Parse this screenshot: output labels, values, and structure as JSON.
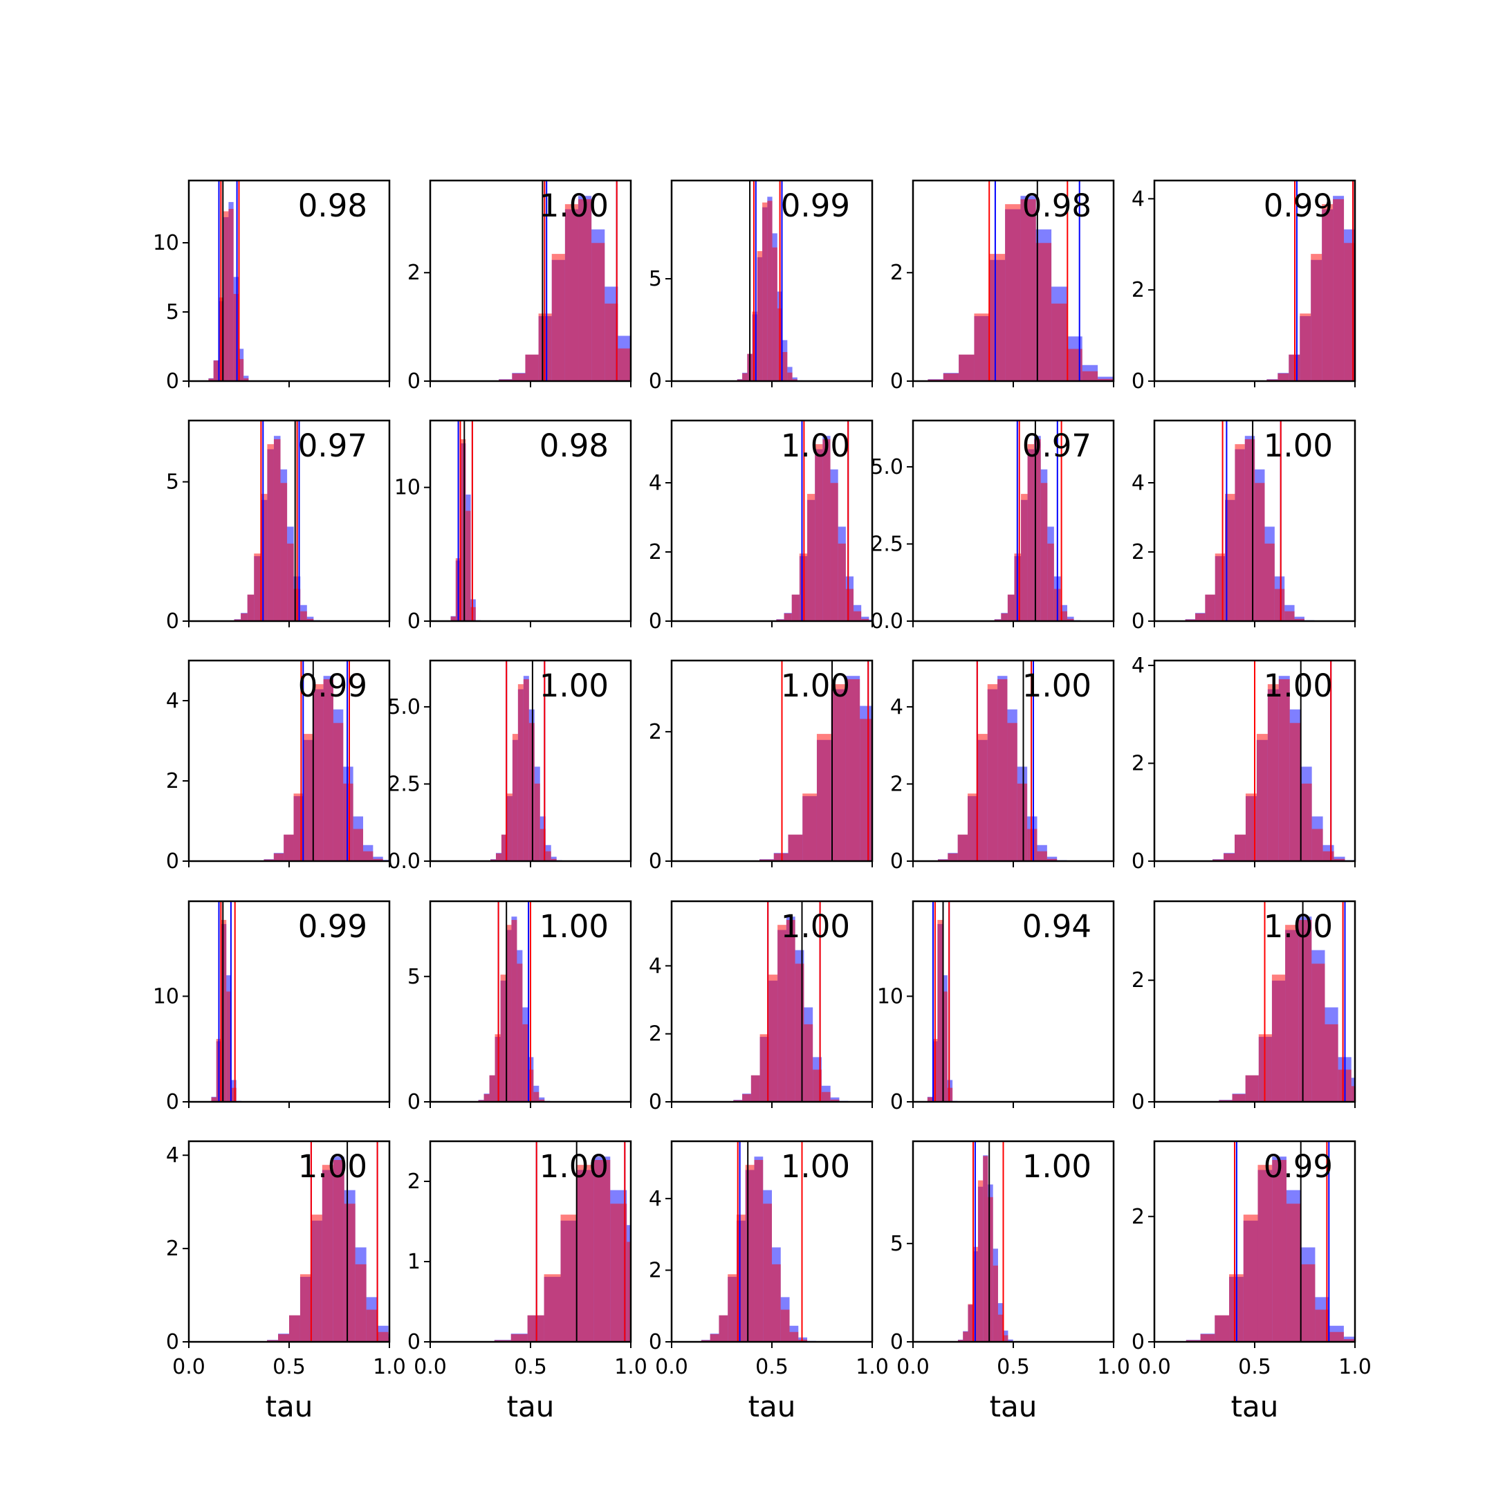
{
  "colors": {
    "blue": "#0000ff",
    "red": "#ff0000",
    "overlap": "#c0396f",
    "line_black": "#000000"
  },
  "chart_data": {
    "type": "histogram-grid",
    "rows": 5,
    "cols": 5,
    "xlabel": "tau",
    "xlim": [
      0.0,
      1.0
    ],
    "x_tick_labels": [
      "0.0",
      "0.5",
      "1.0"
    ],
    "hist_overlay": "blue and red semi-transparent histograms per panel with vertical lines",
    "panels": [
      {
        "score": "0.98",
        "mean": 0.2,
        "sd": 0.03,
        "ymax": 14.5,
        "yticks": [
          "0",
          "5",
          "10"
        ],
        "yvals": [
          0,
          5,
          10
        ],
        "lines": {
          "blue": [
            0.15,
            0.24
          ],
          "red": [
            0.16,
            0.25
          ],
          "black": [
            0.17
          ]
        }
      },
      {
        "score": "1.00",
        "mean": 0.75,
        "sd": 0.12,
        "ymax": 3.7,
        "yticks": [
          "0",
          "2"
        ],
        "yvals": [
          0,
          2
        ],
        "lines": {
          "blue": [
            0.58,
            0.93
          ],
          "red": [
            0.57,
            0.93
          ],
          "black": [
            0.56
          ]
        }
      },
      {
        "score": "0.99",
        "mean": 0.48,
        "sd": 0.045,
        "ymax": 9.8,
        "yticks": [
          "0",
          "5"
        ],
        "yvals": [
          0,
          5
        ],
        "lines": {
          "blue": [
            0.42,
            0.55
          ],
          "red": [
            0.41,
            0.54
          ],
          "black": [
            0.39
          ]
        }
      },
      {
        "score": "0.98",
        "mean": 0.55,
        "sd": 0.14,
        "ymax": 3.7,
        "yticks": [
          "0",
          "2"
        ],
        "yvals": [
          0,
          2
        ],
        "lines": {
          "blue": [
            0.41,
            0.83
          ],
          "red": [
            0.38,
            0.77
          ],
          "black": [
            0.62
          ]
        }
      },
      {
        "score": "0.99",
        "mean": 0.9,
        "sd": 0.1,
        "ymax": 4.4,
        "yticks": [
          "0",
          "2",
          "4"
        ],
        "yvals": [
          0,
          2,
          4
        ],
        "lines": {
          "blue": [
            0.71,
            0.99
          ],
          "red": [
            0.7,
            0.99
          ],
          "black": [
            0.99
          ]
        }
      },
      {
        "score": "0.97",
        "mean": 0.43,
        "sd": 0.06,
        "ymax": 7.2,
        "yticks": [
          "0",
          "5"
        ],
        "yvals": [
          0,
          5
        ],
        "lines": {
          "blue": [
            0.37,
            0.55
          ],
          "red": [
            0.36,
            0.54
          ],
          "black": [
            0.53
          ]
        }
      },
      {
        "score": "0.98",
        "mean": 0.17,
        "sd": 0.02,
        "ymax": 15.0,
        "yticks": [
          "0",
          "10"
        ],
        "yvals": [
          0,
          10
        ],
        "lines": {
          "blue": [
            0.14,
            0.21
          ],
          "red": [
            0.15,
            0.21
          ],
          "black": [
            0.17
          ]
        }
      },
      {
        "score": "1.00",
        "mean": 0.76,
        "sd": 0.07,
        "ymax": 5.8,
        "yticks": [
          "0",
          "2",
          "4"
        ],
        "yvals": [
          0,
          2,
          4
        ],
        "lines": {
          "blue": [
            0.65,
            0.88
          ],
          "red": [
            0.66,
            0.88
          ],
          "black": [
            0.65
          ]
        }
      },
      {
        "score": "0.97",
        "mean": 0.61,
        "sd": 0.06,
        "ymax": 6.5,
        "yticks": [
          "0.0",
          "2.5",
          "5.0"
        ],
        "yvals": [
          0,
          2.5,
          5
        ],
        "lines": {
          "blue": [
            0.52,
            0.72
          ],
          "red": [
            0.53,
            0.74
          ],
          "black": [
            0.61
          ]
        }
      },
      {
        "score": "1.00",
        "mean": 0.46,
        "sd": 0.09,
        "ymax": 5.8,
        "yticks": [
          "0",
          "2",
          "4"
        ],
        "yvals": [
          0,
          2,
          4
        ],
        "lines": {
          "blue": [
            0.36,
            0.63
          ],
          "red": [
            0.34,
            0.63
          ],
          "black": [
            0.49
          ]
        }
      },
      {
        "score": "0.99",
        "mean": 0.68,
        "sd": 0.09,
        "ymax": 5.0,
        "yticks": [
          "0",
          "2",
          "4"
        ],
        "yvals": [
          0,
          2,
          4
        ],
        "lines": {
          "blue": [
            0.57,
            0.79
          ],
          "red": [
            0.56,
            0.8
          ],
          "black": [
            0.62
          ]
        }
      },
      {
        "score": "1.00",
        "mean": 0.47,
        "sd": 0.05,
        "ymax": 6.5,
        "yticks": [
          "0.0",
          "2.5",
          "5.0"
        ],
        "yvals": [
          0,
          2.5,
          5
        ],
        "lines": {
          "blue": [
            0.38,
            0.57
          ],
          "red": [
            0.38,
            0.57
          ],
          "black": [
            0.51
          ]
        }
      },
      {
        "score": "1.00",
        "mean": 0.88,
        "sd": 0.13,
        "ymax": 3.1,
        "yticks": [
          "0",
          "2"
        ],
        "yvals": [
          0,
          2
        ],
        "lines": {
          "blue": [
            0.55,
            0.98
          ],
          "red": [
            0.55,
            0.98
          ],
          "black": [
            0.8
          ]
        }
      },
      {
        "score": "1.00",
        "mean": 0.43,
        "sd": 0.09,
        "ymax": 5.2,
        "yticks": [
          "0",
          "2",
          "4"
        ],
        "yvals": [
          0,
          2,
          4
        ],
        "lines": {
          "blue": [
            0.32,
            0.6
          ],
          "red": [
            0.32,
            0.59
          ],
          "black": [
            0.55
          ]
        }
      },
      {
        "score": "1.00",
        "mean": 0.63,
        "sd": 0.1,
        "ymax": 4.1,
        "yticks": [
          "0",
          "2",
          "4"
        ],
        "yvals": [
          0,
          2,
          4
        ],
        "lines": {
          "blue": [
            0.5,
            0.88
          ],
          "red": [
            0.5,
            0.88
          ],
          "black": [
            0.73
          ]
        }
      },
      {
        "score": "0.99",
        "mean": 0.18,
        "sd": 0.02,
        "ymax": 19.0,
        "yticks": [
          "0",
          "10"
        ],
        "yvals": [
          0,
          10
        ],
        "lines": {
          "blue": [
            0.15,
            0.21
          ],
          "red": [
            0.16,
            0.23
          ],
          "black": [
            0.17
          ]
        }
      },
      {
        "score": "1.00",
        "mean": 0.41,
        "sd": 0.05,
        "ymax": 8.0,
        "yticks": [
          "0",
          "5"
        ],
        "yvals": [
          0,
          5
        ],
        "lines": {
          "blue": [
            0.34,
            0.49
          ],
          "red": [
            0.34,
            0.5
          ],
          "black": [
            0.38
          ]
        }
      },
      {
        "score": "1.00",
        "mean": 0.58,
        "sd": 0.08,
        "ymax": 5.9,
        "yticks": [
          "0",
          "2",
          "4"
        ],
        "yvals": [
          0,
          2,
          4
        ],
        "lines": {
          "blue": [
            0.48,
            0.74
          ],
          "red": [
            0.48,
            0.74
          ],
          "black": [
            0.65
          ]
        }
      },
      {
        "score": "0.94",
        "mean": 0.14,
        "sd": 0.02,
        "ymax": 19.0,
        "yticks": [
          "0",
          "10"
        ],
        "yvals": [
          0,
          10
        ],
        "lines": {
          "blue": [
            0.1,
            0.18
          ],
          "red": [
            0.11,
            0.18
          ],
          "black": [
            0.15
          ]
        }
      },
      {
        "score": "1.00",
        "mean": 0.73,
        "sd": 0.12,
        "ymax": 3.3,
        "yticks": [
          "0",
          "2"
        ],
        "yvals": [
          0,
          2
        ],
        "lines": {
          "blue": [
            0.55,
            0.95
          ],
          "red": [
            0.55,
            0.94
          ],
          "black": [
            0.74
          ]
        }
      },
      {
        "score": "1.00",
        "mean": 0.73,
        "sd": 0.1,
        "ymax": 4.3,
        "yticks": [
          "0",
          "2",
          "4"
        ],
        "yvals": [
          0,
          2,
          4
        ],
        "lines": {
          "blue": [
            0.61,
            0.94
          ],
          "red": [
            0.61,
            0.94
          ],
          "black": [
            0.79
          ]
        }
      },
      {
        "score": "1.00",
        "mean": 0.83,
        "sd": 0.15,
        "ymax": 2.5,
        "yticks": [
          "0",
          "1",
          "2"
        ],
        "yvals": [
          0,
          1,
          2
        ],
        "lines": {
          "blue": [
            0.53,
            0.97
          ],
          "red": [
            0.53,
            0.97
          ],
          "black": [
            0.73
          ]
        }
      },
      {
        "score": "1.00",
        "mean": 0.42,
        "sd": 0.08,
        "ymax": 5.6,
        "yticks": [
          "0",
          "2",
          "4"
        ],
        "yvals": [
          0,
          2,
          4
        ],
        "lines": {
          "blue": [
            0.34,
            0.65
          ],
          "red": [
            0.33,
            0.65
          ],
          "black": [
            0.38
          ]
        }
      },
      {
        "score": "1.00",
        "mean": 0.36,
        "sd": 0.04,
        "ymax": 10.2,
        "yticks": [
          "0",
          "5"
        ],
        "yvals": [
          0,
          5
        ],
        "lines": {
          "blue": [
            0.31,
            0.45
          ],
          "red": [
            0.3,
            0.45
          ],
          "black": [
            0.38
          ]
        }
      },
      {
        "score": "0.99",
        "mean": 0.6,
        "sd": 0.13,
        "ymax": 3.2,
        "yticks": [
          "0",
          "2"
        ],
        "yvals": [
          0,
          2
        ],
        "lines": {
          "blue": [
            0.41,
            0.87
          ],
          "red": [
            0.4,
            0.86
          ],
          "black": [
            0.73
          ]
        }
      }
    ]
  }
}
